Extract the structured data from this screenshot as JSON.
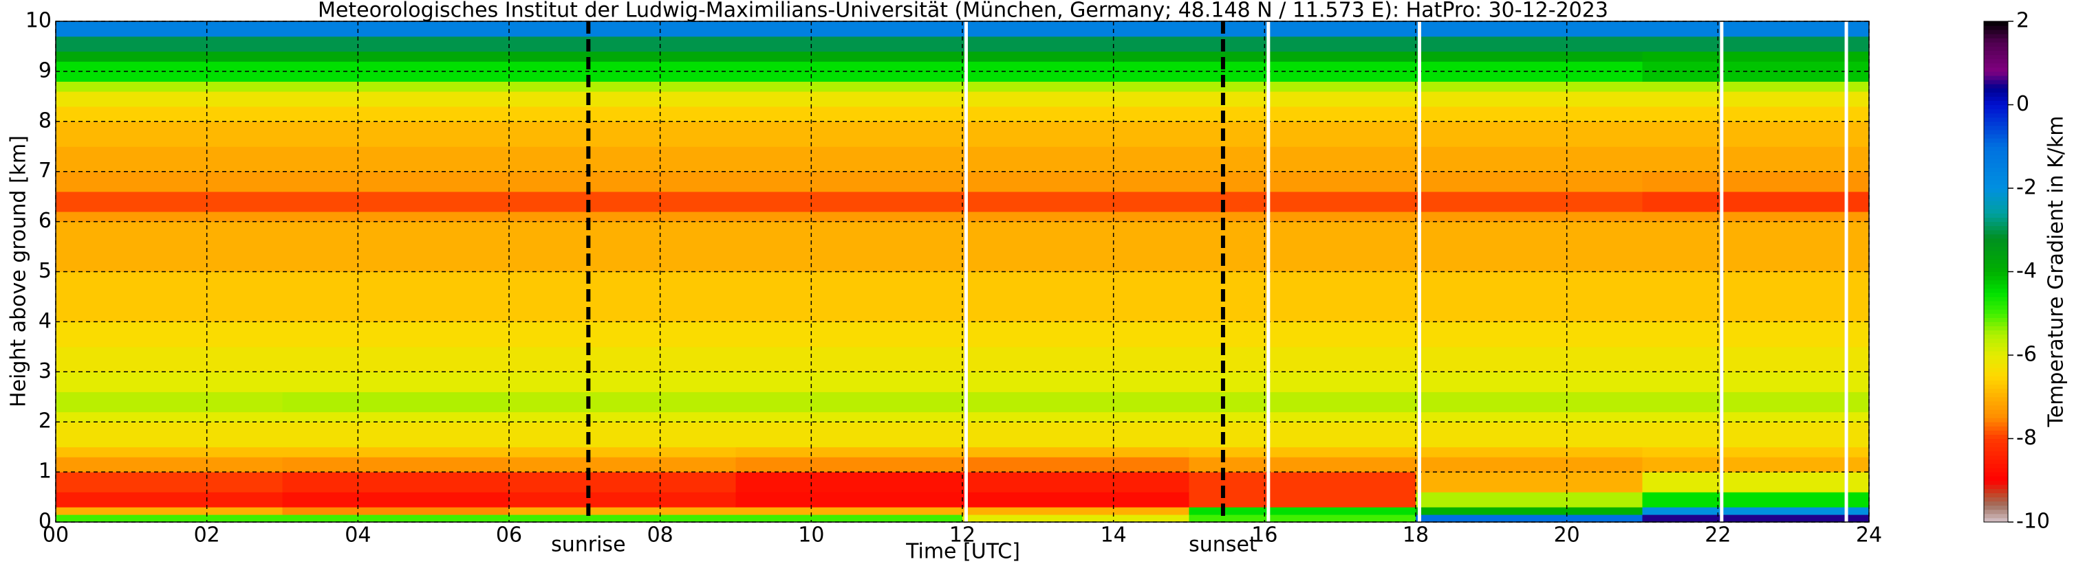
{
  "chart_data": {
    "type": "heatmap",
    "title": "Meteorologisches Institut der Ludwig-Maximilians-Universität (München, Germany; 48.148 N / 11.573 E):    HatPro: 30-12-2023",
    "xlabel": "Time [UTC]",
    "ylabel": "Height above ground [km]",
    "colorbar_label": "Temperature Gradient in K/km",
    "x_edges": [
      0,
      3,
      6,
      9,
      12,
      15,
      18,
      21,
      24
    ],
    "y_edges": [
      0,
      0.15,
      0.3,
      0.6,
      1.0,
      1.3,
      1.5,
      2.0,
      2.2,
      2.6,
      3.0,
      3.5,
      4.0,
      5.0,
      6.0,
      6.2,
      6.6,
      7.0,
      7.5,
      8.0,
      8.3,
      8.6,
      8.8,
      9.2,
      9.4,
      9.7,
      10
    ],
    "z": [
      [
        -5,
        -5,
        -5,
        -5,
        -6,
        -5,
        -1,
        0.5
      ],
      [
        -7,
        -7.5,
        -7,
        -7,
        -7,
        -4.5,
        -4,
        -2
      ],
      [
        -8.5,
        -8.7,
        -8.5,
        -8.8,
        -8.8,
        -8,
        -5.5,
        -4.5
      ],
      [
        -8,
        -8.3,
        -8.2,
        -8.7,
        -8.5,
        -8,
        -7,
        -6
      ],
      [
        -7.3,
        -7.4,
        -7.3,
        -7.5,
        -7.6,
        -7.3,
        -7.2,
        -7
      ],
      [
        -6.8,
        -6.8,
        -6.8,
        -6.9,
        -6.9,
        -6.8,
        -6.8,
        -6.7
      ],
      [
        -6.3,
        -6.3,
        -6.3,
        -6.3,
        -6.3,
        -6.3,
        -6.3,
        -6.3
      ],
      [
        -6,
        -6,
        -6,
        -6,
        -6,
        -6,
        -6,
        -6
      ],
      [
        -5.6,
        -5.5,
        -5.6,
        -5.6,
        -5.6,
        -5.6,
        -5.6,
        -5.6
      ],
      [
        -6,
        -6,
        -6,
        -6,
        -6,
        -6,
        -6,
        -6
      ],
      [
        -6.2,
        -6.2,
        -6.2,
        -6.2,
        -6.2,
        -6.2,
        -6.2,
        -6.2
      ],
      [
        -6.4,
        -6.4,
        -6.4,
        -6.4,
        -6.4,
        -6.4,
        -6.4,
        -6.4
      ],
      [
        -6.7,
        -6.7,
        -6.7,
        -6.7,
        -6.7,
        -6.7,
        -6.7,
        -6.7
      ],
      [
        -7,
        -7,
        -7,
        -7,
        -7,
        -7,
        -7,
        -7
      ],
      [
        -7.3,
        -7.3,
        -7.3,
        -7.3,
        -7.3,
        -7.3,
        -7.3,
        -7.3
      ],
      [
        -7.9,
        -7.9,
        -7.9,
        -7.9,
        -7.9,
        -7.9,
        -7.9,
        -8
      ],
      [
        -7.3,
        -7.3,
        -7.3,
        -7.3,
        -7.3,
        -7.3,
        -7.3,
        -7.4
      ],
      [
        -7.1,
        -7.1,
        -7.1,
        -7.1,
        -7.1,
        -7.1,
        -7.1,
        -7.1
      ],
      [
        -6.9,
        -6.9,
        -6.9,
        -6.9,
        -6.9,
        -6.9,
        -6.9,
        -6.9
      ],
      [
        -6.6,
        -6.6,
        -6.6,
        -6.6,
        -6.6,
        -6.6,
        -6.6,
        -6.6
      ],
      [
        -6.2,
        -6.2,
        -6.2,
        -6.2,
        -6.2,
        -6.2,
        -6.2,
        -6.2
      ],
      [
        -5.5,
        -5.5,
        -5.5,
        -5.5,
        -5.5,
        -5.5,
        -5.5,
        -5.5
      ],
      [
        -4.5,
        -4.5,
        -4.5,
        -4.5,
        -4.5,
        -4.5,
        -4.5,
        -4.2
      ],
      [
        -3.8,
        -3.8,
        -3.8,
        -3.8,
        -3.8,
        -3.8,
        -3.8,
        -4
      ],
      [
        -3,
        -3,
        -3,
        -3,
        -3,
        -3,
        -3,
        -3
      ],
      [
        -1.5,
        -1.5,
        -1.5,
        -1.5,
        -1.5,
        -1.5,
        -1.5,
        -1.5
      ]
    ],
    "colormap": [
      [
        -10,
        "#d6c4ca"
      ],
      [
        -9.6,
        "#a07060"
      ],
      [
        -9.3,
        "#c84020"
      ],
      [
        -9,
        "#ff0000"
      ],
      [
        -8,
        "#ff3a00"
      ],
      [
        -7.5,
        "#ff8c00"
      ],
      [
        -7,
        "#ffb000"
      ],
      [
        -6.5,
        "#ffd800"
      ],
      [
        -6,
        "#e4ec00"
      ],
      [
        -5.5,
        "#b0f000"
      ],
      [
        -5,
        "#40f000"
      ],
      [
        -4.5,
        "#00e000"
      ],
      [
        -4,
        "#00b000"
      ],
      [
        -3.2,
        "#009020"
      ],
      [
        -2.6,
        "#00a0a0"
      ],
      [
        -2,
        "#0090e0"
      ],
      [
        -1,
        "#0070e0"
      ],
      [
        0,
        "#0010d0"
      ],
      [
        0.4,
        "#000090"
      ],
      [
        0.8,
        "#800080"
      ],
      [
        1.5,
        "#500050"
      ],
      [
        2,
        "#000000"
      ]
    ],
    "clim": [
      -10,
      2
    ],
    "cticks": [
      2,
      0,
      -2,
      -4,
      -6,
      -8,
      -10
    ],
    "xlim": [
      0,
      24
    ],
    "ylim": [
      0,
      10
    ],
    "xticks": [
      {
        "value": 0,
        "label": "00"
      },
      {
        "value": 2,
        "label": "02"
      },
      {
        "value": 4,
        "label": "04"
      },
      {
        "value": 6,
        "label": "06"
      },
      {
        "value": 8,
        "label": "08"
      },
      {
        "value": 10,
        "label": "10"
      },
      {
        "value": 12,
        "label": "12"
      },
      {
        "value": 14,
        "label": "14"
      },
      {
        "value": 16,
        "label": "16"
      },
      {
        "value": 18,
        "label": "18"
      },
      {
        "value": 20,
        "label": "20"
      },
      {
        "value": 22,
        "label": "22"
      },
      {
        "value": 24,
        "label": "24"
      }
    ],
    "yticks": [
      0,
      1,
      2,
      3,
      4,
      5,
      6,
      7,
      8,
      9,
      10
    ],
    "grid": true,
    "data_gaps": [
      12.05,
      16.05,
      18.05,
      22.05,
      23.7
    ],
    "annotations": [
      {
        "text": "sunrise",
        "x": 7.05
      },
      {
        "text": "sunset",
        "x": 15.45
      }
    ]
  }
}
